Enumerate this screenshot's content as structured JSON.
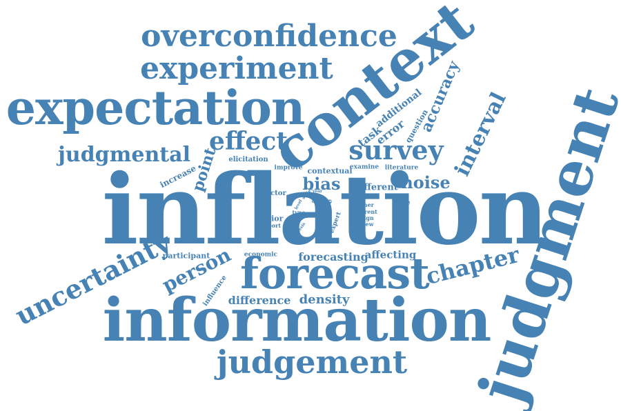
{
  "color": "#4682b4",
  "words": {
    "inflation": "inflation",
    "information": "information",
    "judgment": "judgment",
    "context": "context",
    "expectation": "expectation",
    "forecast": "forecast",
    "overconfidence": "overconfidence",
    "experiment": "experiment",
    "judgement": "judgement",
    "uncertainty": "uncertainty",
    "survey": "survey",
    "chapter": "chapter",
    "effect": "effect",
    "judgmental": "judgmental",
    "interval": "interval",
    "person": "person",
    "accuracy": "accuracy",
    "noise": "noise",
    "bias": "bias",
    "point": "point",
    "density": "density",
    "difference": "difference",
    "forecasting": "forecasting",
    "affecting": "affecting",
    "task": "task",
    "error": "error",
    "additional": "additional",
    "question": "question",
    "increase": "increase",
    "elicitation": "elicitation",
    "improve": "improve",
    "contextual": "contextual",
    "examine": "examine",
    "literature": "literature",
    "different": "different",
    "participant": "participant",
    "economic": "economic",
    "influence": "influence",
    "factor": "factor",
    "prior": "prior",
    "report": "report",
    "expert": "expert",
    "rate": "rate",
    "upcoming": "upcoming",
    "higher": "higher",
    "current": "current",
    "design": "design",
    "review": "review",
    "type": "type",
    "thesis": "thesis",
    "year": "year",
    "price": "price",
    "series": "series",
    "work": "work",
    "level": "level",
    "differ": "differ"
  }
}
